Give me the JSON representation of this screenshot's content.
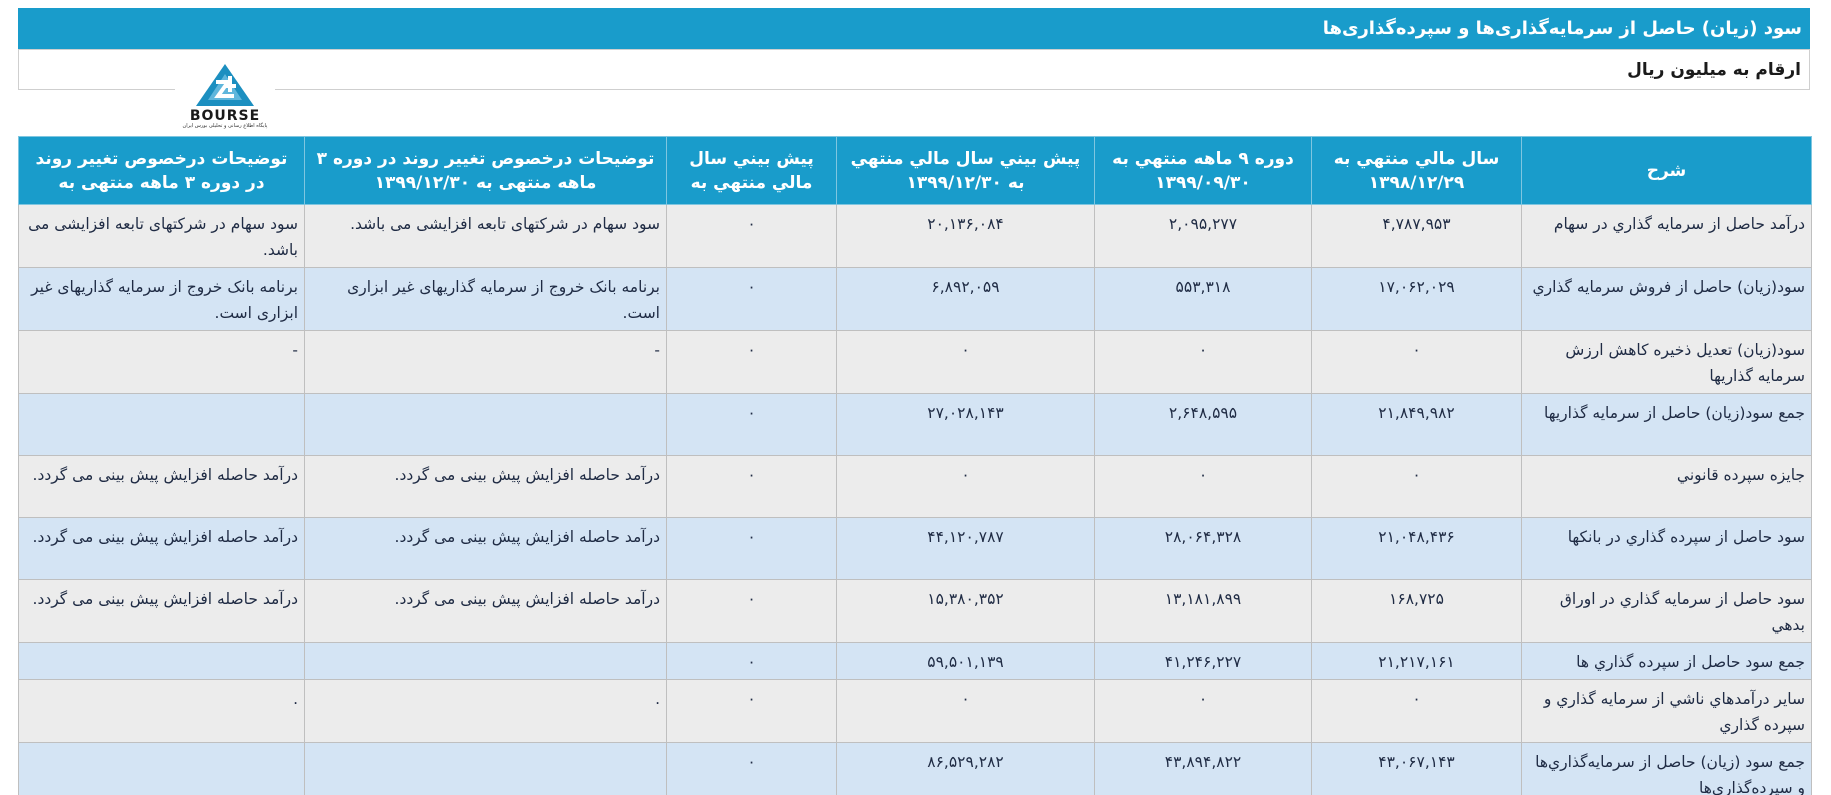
{
  "title": "سود (زیان) حاصل از سرمایه‌گذاری‌ها و سپرده‌گذاری‌ها",
  "unit_note": "ارقام به میلیون ریال",
  "logo": {
    "name": "BOURSE",
    "tagline": "پایگاه اطلاع رسانی و تحلیلی بورس ایران"
  },
  "table": {
    "headers": [
      "شرح",
      "سال مالي منتهي به ۱۳۹۸/۱۲/۲۹",
      "دوره ۹ ماهه منتهي به ۱۳۹۹/۰۹/۳۰",
      "پيش بيني سال مالي منتهي به ۱۳۹۹/۱۲/۳۰",
      "پيش بيني سال مالي منتهي به",
      "توضیحات درخصوص تغییر روند در دوره ۳ ماهه منتهی به ۱۳۹۹/۱۲/۳۰",
      "توضیحات درخصوص تغییر روند در دوره ۳ ماهه منتهی به"
    ],
    "rows": [
      {
        "desc": "درآمد حاصل از سرمايه گذاري در سهام",
        "y1398": "۴,۷۸۷,۹۵۳",
        "m9": "۲,۰۹۵,۲۷۷",
        "f1399": "۲۰,۱۳۶,۰۸۴",
        "fnext": "۰",
        "note1": "سود سهام در شرکتهای تابعه افزایشی می باشد.",
        "note2": "سود سهام در شرکتهای تابعه افزایشی می باشد."
      },
      {
        "desc": "سود(زيان) حاصل از فروش سرمايه گذاري",
        "y1398": "۱۷,۰۶۲,۰۲۹",
        "m9": "۵۵۳,۳۱۸",
        "f1399": "۶,۸۹۲,۰۵۹",
        "fnext": "۰",
        "note1": "برنامه بانک خروج از سرمایه گذاریهای غیر ابزاری است.",
        "note2": "برنامه بانک خروج از سرمایه گذاریهای غیر ابزاری است."
      },
      {
        "desc": "سود(زيان) تعديل ذخيره کاهش ارزش سرمايه گذاريها",
        "y1398": "۰",
        "m9": "۰",
        "f1399": "۰",
        "fnext": "۰",
        "note1": "-",
        "note2": "-"
      },
      {
        "desc": "جمع سود(زيان) حاصل از سرمايه گذاريها",
        "y1398": "۲۱,۸۴۹,۹۸۲",
        "m9": "۲,۶۴۸,۵۹۵",
        "f1399": "۲۷,۰۲۸,۱۴۳",
        "fnext": "۰",
        "note1": "",
        "note2": ""
      },
      {
        "desc": "جايزه سپرده قانوني",
        "y1398": "۰",
        "m9": "۰",
        "f1399": "۰",
        "fnext": "۰",
        "note1": "درآمد حاصله افزایش پیش بینی می گردد.",
        "note2": "درآمد حاصله افزایش پیش بینی می گردد."
      },
      {
        "desc": "سود حاصل از سپرده گذاري در بانکها",
        "y1398": "۲۱,۰۴۸,۴۳۶",
        "m9": "۲۸,۰۶۴,۳۲۸",
        "f1399": "۴۴,۱۲۰,۷۸۷",
        "fnext": "۰",
        "note1": "درآمد حاصله افزایش پیش بینی می گردد.",
        "note2": "درآمد حاصله افزایش پیش بینی می گردد."
      },
      {
        "desc": "سود حاصل از سرمايه گذاري در اوراق بدهي",
        "y1398": "۱۶۸,۷۲۵",
        "m9": "۱۳,۱۸۱,۸۹۹",
        "f1399": "۱۵,۳۸۰,۳۵۲",
        "fnext": "۰",
        "note1": "درآمد حاصله افزایش پیش بینی می گردد.",
        "note2": "درآمد حاصله افزایش پیش بینی می گردد."
      },
      {
        "desc": "جمع سود حاصل از سپرده گذاري ها",
        "y1398": "۲۱,۲۱۷,۱۶۱",
        "m9": "۴۱,۲۴۶,۲۲۷",
        "f1399": "۵۹,۵۰۱,۱۳۹",
        "fnext": "۰",
        "note1": "",
        "note2": ""
      },
      {
        "desc": "ساير درآمدهاي ناشي از سرمايه گذاري و سپرده گذاري",
        "y1398": "۰",
        "m9": "۰",
        "f1399": "۰",
        "fnext": "۰",
        "note1": ".",
        "note2": "."
      },
      {
        "desc": "جمع سود (زيان) حاصل از سرمايه‌گذاري‌ها و سپرده‌گذاري‌ها",
        "y1398": "۴۳,۰۶۷,۱۴۳",
        "m9": "۴۳,۸۹۴,۸۲۲",
        "f1399": "۸۶,۵۲۹,۲۸۲",
        "fnext": "۰",
        "note1": "",
        "note2": ""
      }
    ]
  }
}
